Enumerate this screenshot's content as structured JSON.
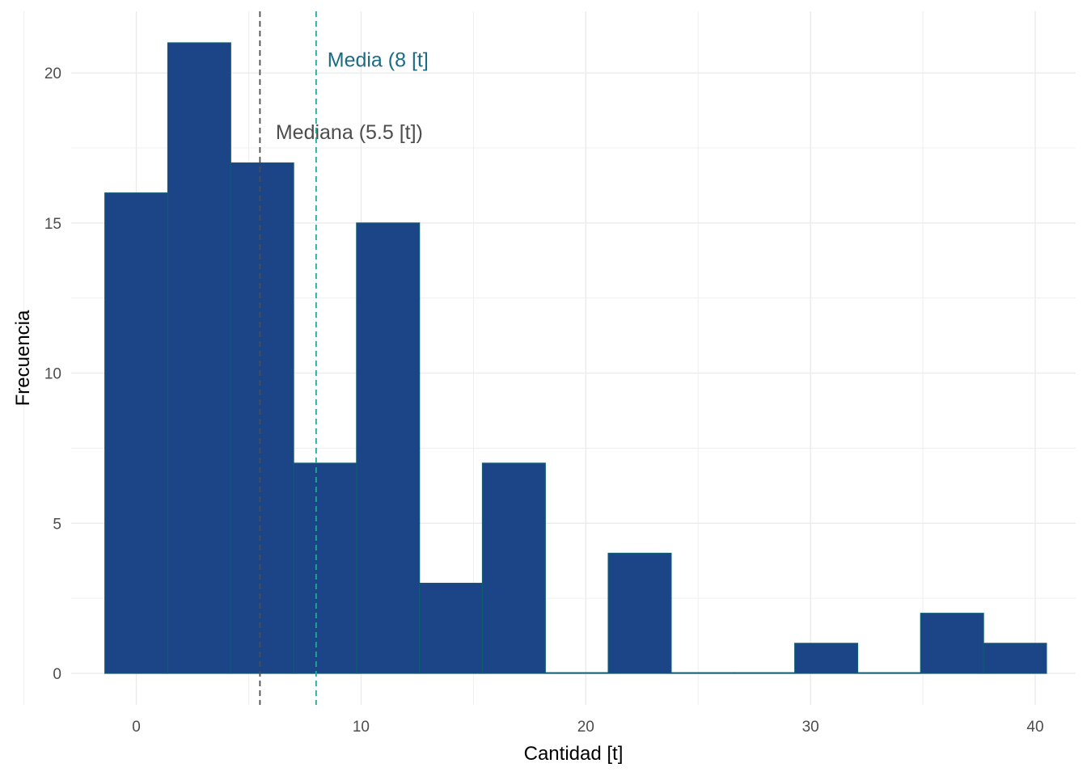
{
  "chart_data": {
    "type": "bar",
    "subtype": "histogram",
    "xlabel": "Cantidad [t]",
    "ylabel": "Frecuencia",
    "xlim": [
      -2.9,
      41.8
    ],
    "ylim": [
      -1.05,
      22.05
    ],
    "x_ticks": [
      0,
      10,
      20,
      30,
      40
    ],
    "y_ticks": [
      0,
      5,
      10,
      15,
      20
    ],
    "grid": true,
    "bar_fill": "#1B4586",
    "bar_outline": "#0E5C72",
    "bins": [
      {
        "x0": -1.4,
        "x1": 1.4,
        "count": 16
      },
      {
        "x0": 1.4,
        "x1": 4.2,
        "count": 21
      },
      {
        "x0": 4.2,
        "x1": 7.0,
        "count": 17
      },
      {
        "x0": 7.0,
        "x1": 9.8,
        "count": 7
      },
      {
        "x0": 9.8,
        "x1": 12.6,
        "count": 15
      },
      {
        "x0": 12.6,
        "x1": 15.4,
        "count": 3
      },
      {
        "x0": 15.4,
        "x1": 18.2,
        "count": 7
      },
      {
        "x0": 18.2,
        "x1": 21.0,
        "count": 0
      },
      {
        "x0": 21.0,
        "x1": 23.8,
        "count": 4
      },
      {
        "x0": 23.8,
        "x1": 26.6,
        "count": 0
      },
      {
        "x0": 26.6,
        "x1": 29.3,
        "count": 0
      },
      {
        "x0": 29.3,
        "x1": 32.1,
        "count": 1
      },
      {
        "x0": 32.1,
        "x1": 34.9,
        "count": 0
      },
      {
        "x0": 34.9,
        "x1": 37.7,
        "count": 2
      },
      {
        "x0": 37.7,
        "x1": 40.5,
        "count": 1
      }
    ],
    "reference_lines": [
      {
        "name": "mediana",
        "x": 5.5,
        "color": "#4D4D4D",
        "label": "Mediana (5.5 [t])",
        "label_x": 6.2,
        "label_y": 17.8,
        "label_color": "#4D4D4D"
      },
      {
        "name": "media",
        "x": 8,
        "color": "#26A69A",
        "label": "Media (8 [t]",
        "label_x": 8.5,
        "label_y": 20.2,
        "label_color": "#1A6B85"
      }
    ]
  }
}
